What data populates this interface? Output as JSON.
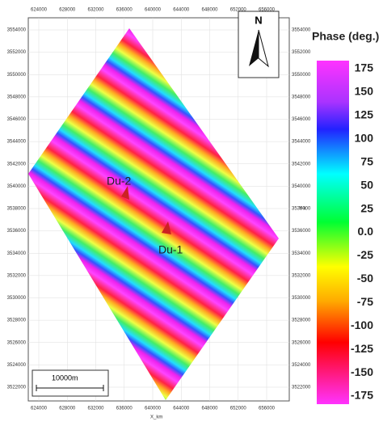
{
  "map": {
    "north": "N",
    "scale_bar": "10000m",
    "x_axis_label": "X_km",
    "y_axis_label": "Y-k",
    "x_ticks": [
      "624000",
      "628000",
      "632000",
      "636000",
      "640000",
      "644000",
      "648000",
      "652000",
      "656000"
    ],
    "y_ticks": [
      "3554000",
      "3552000",
      "3550000",
      "3548000",
      "3546000",
      "3544000",
      "3542000",
      "3540000",
      "3538000",
      "3536000",
      "3534000",
      "3532000",
      "3530000",
      "3528000",
      "3526000",
      "3524000",
      "3522000"
    ],
    "places": [
      {
        "label": "Du-2"
      },
      {
        "label": "Du-1"
      }
    ]
  },
  "legend": {
    "title": "Phase (deg.)",
    "labels": [
      "175",
      "150",
      "125",
      "100",
      "75",
      "50",
      "25",
      "0.0",
      "-25",
      "-50",
      "-75",
      "-100",
      "-125",
      "-150",
      "-175"
    ]
  }
}
